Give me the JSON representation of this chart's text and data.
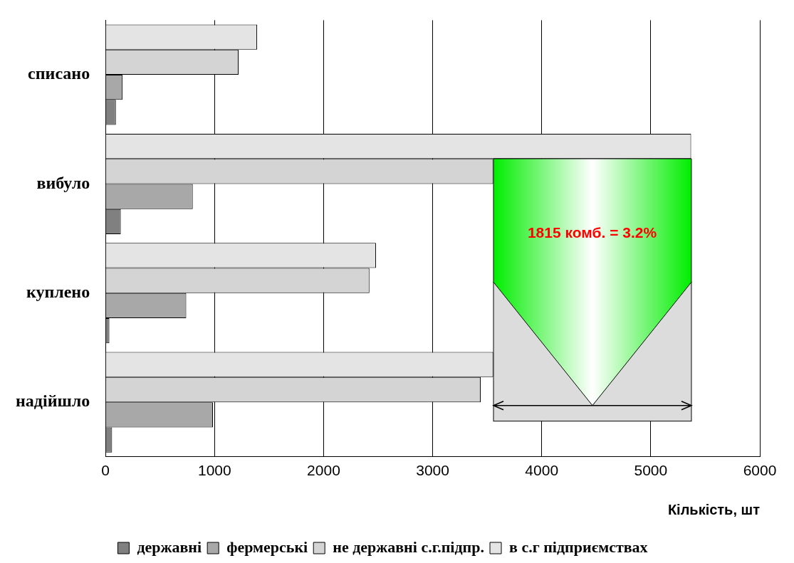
{
  "chart_data": {
    "type": "bar",
    "orientation": "horizontal",
    "xlabel": "Кількість, шт",
    "categories": [
      "списано",
      "вибуло",
      "куплено",
      "надійшло"
    ],
    "series": [
      {
        "name": "державні",
        "color": "#808080",
        "values": [
          95,
          140,
          35,
          60
        ]
      },
      {
        "name": "фермерські",
        "color": "#a8a8a8",
        "values": [
          155,
          800,
          740,
          985
        ]
      },
      {
        "name": "не державні с.г.підпр.",
        "color": "#d4d4d4",
        "values": [
          1220,
          3555,
          2420,
          3440
        ]
      },
      {
        "name": "в с.г підприємствах",
        "color": "#e4e4e4",
        "values": [
          1390,
          5370,
          2480,
          3555
        ]
      }
    ],
    "xlim": [
      0,
      6000
    ],
    "xticks": [
      0,
      1000,
      2000,
      3000,
      4000,
      5000,
      6000
    ],
    "grid": "x",
    "legend": "bottom",
    "annotations": [
      "1815 комб. = 3.2%"
    ]
  }
}
